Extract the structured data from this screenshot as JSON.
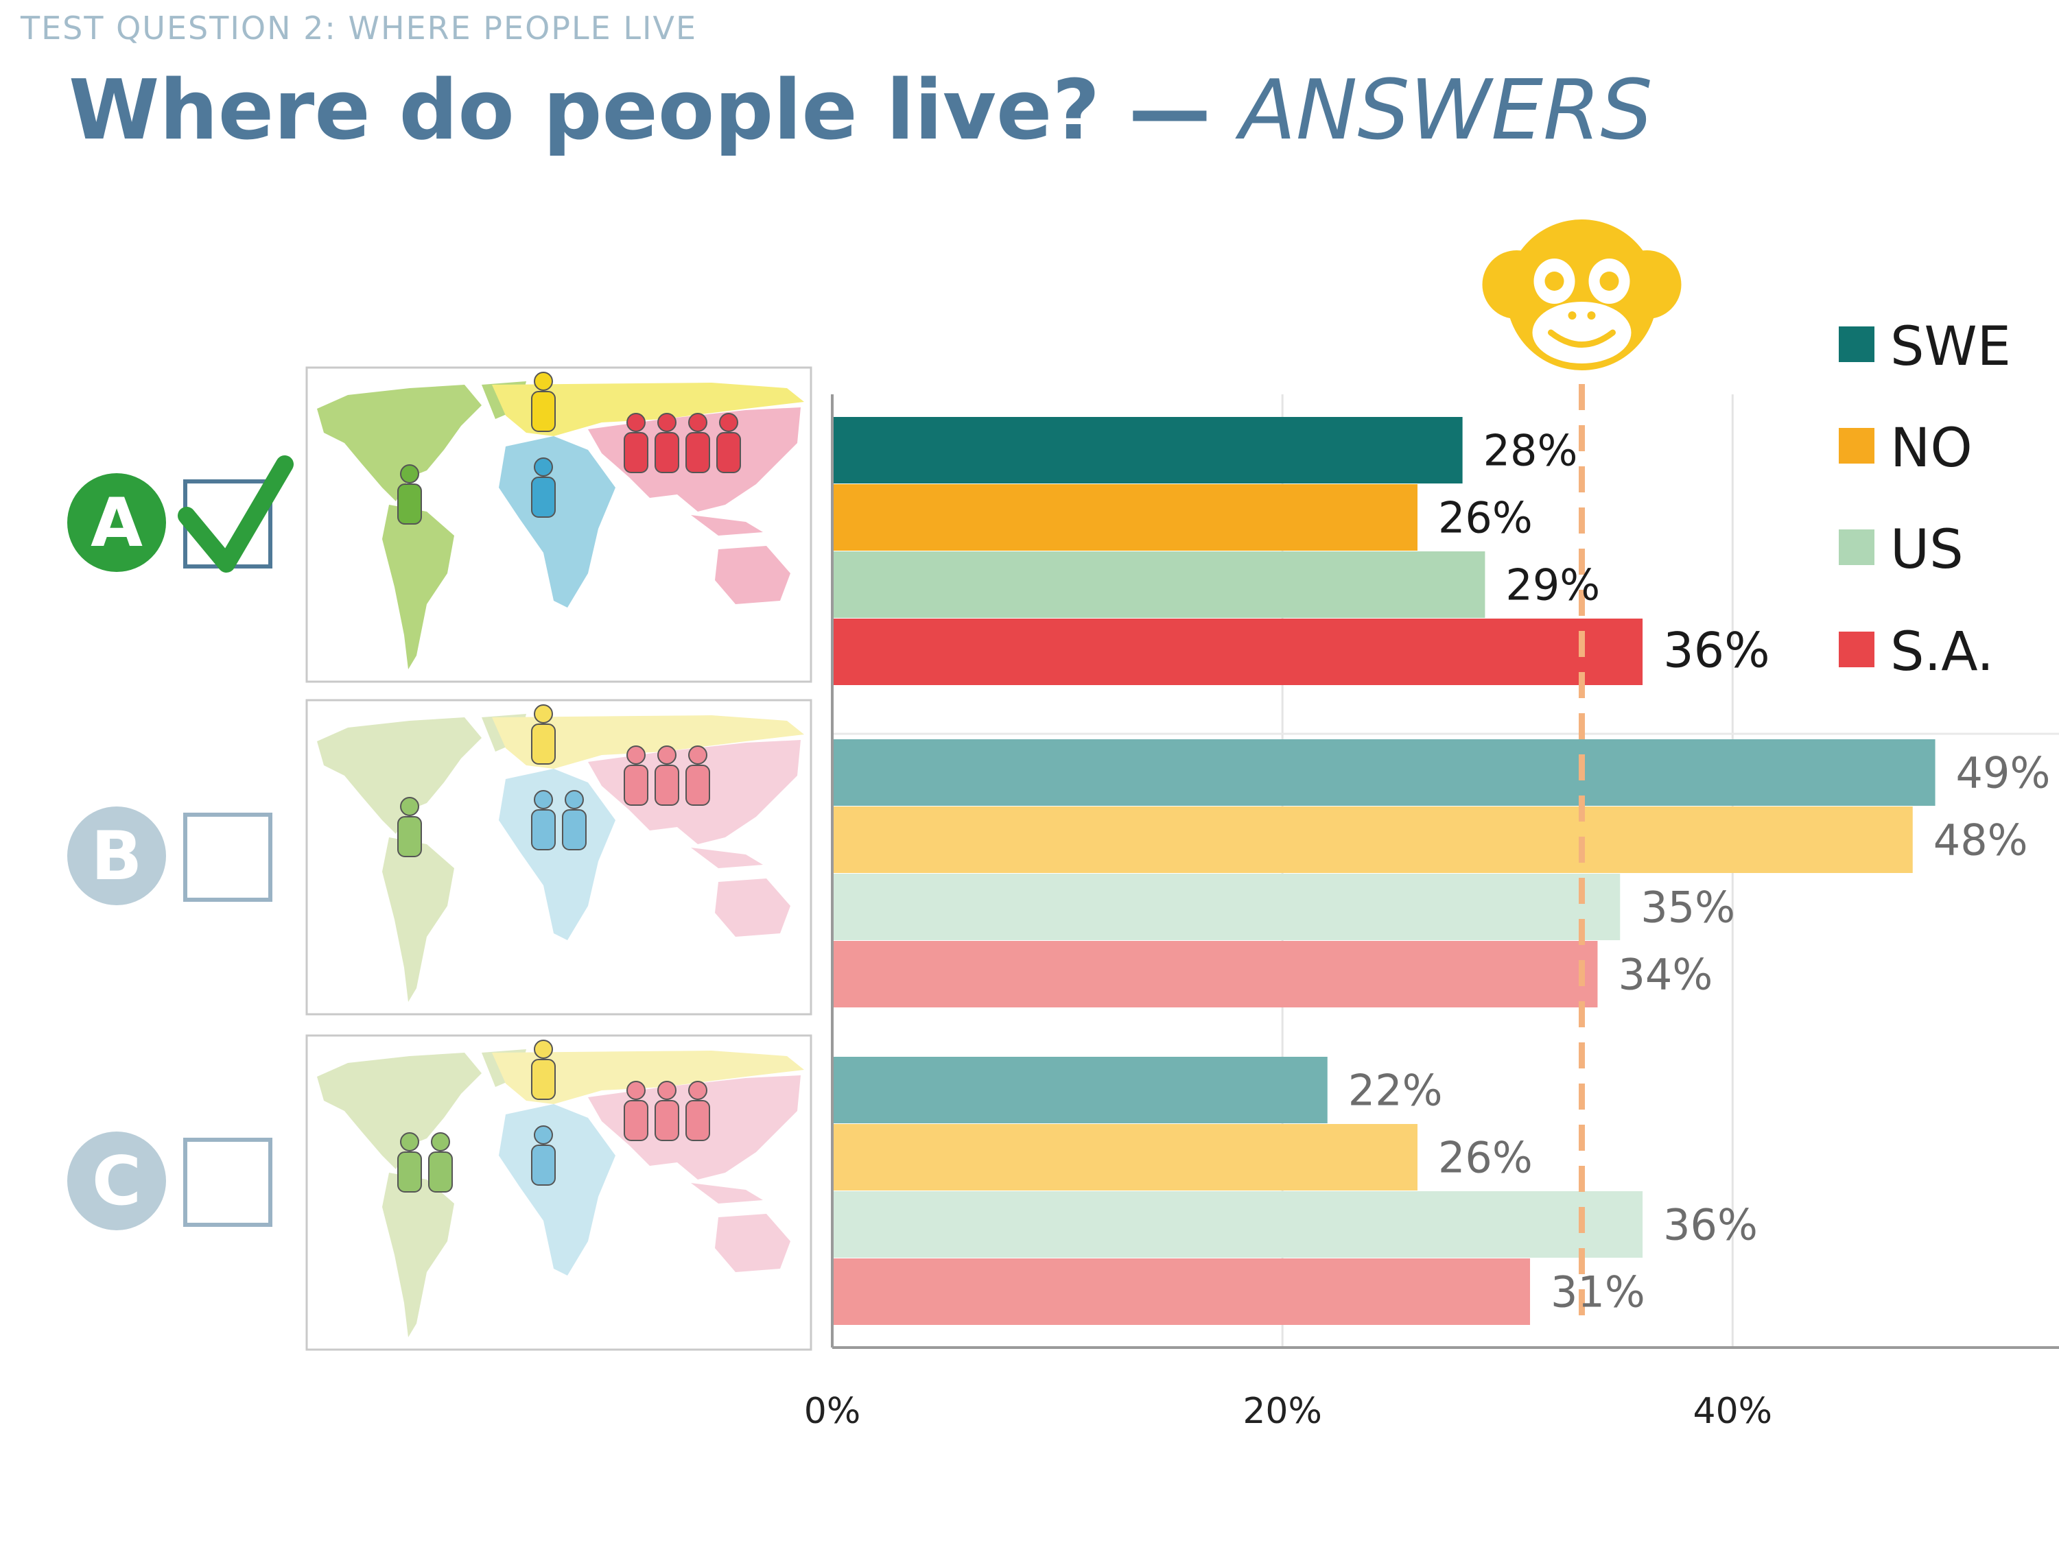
{
  "header": {
    "kicker": "TEST QUESTION 2: WHERE PEOPLE LIVE",
    "title_main": "Where do people live? — ",
    "title_emphasis": "ANSWERS"
  },
  "options": [
    {
      "letter": "A",
      "correct": true,
      "badge_color": "#2e9e3c",
      "checkbox_icon": "check-icon"
    },
    {
      "letter": "B",
      "correct": false,
      "badge_color": "#b9cdd8"
    },
    {
      "letter": "C",
      "correct": false,
      "badge_color": "#b9cdd8"
    }
  ],
  "maps": [
    {
      "option": "A",
      "figures": {
        "americas": 1,
        "europe": 1,
        "africa": 1,
        "asia": 4
      }
    },
    {
      "option": "B",
      "figures": {
        "americas": 1,
        "europe": 1,
        "africa": 2,
        "asia": 3
      }
    },
    {
      "option": "C",
      "figures": {
        "americas": 2,
        "europe": 1,
        "africa": 1,
        "asia": 3
      }
    }
  ],
  "chart_data": {
    "type": "bar",
    "orientation": "horizontal",
    "categories": [
      "A",
      "B",
      "C"
    ],
    "series": [
      {
        "name": "SWE",
        "color": "#11736f",
        "faded_color": "#73b2b1",
        "values": [
          28,
          49,
          22
        ]
      },
      {
        "name": "NO",
        "color": "#f6aa1f",
        "faded_color": "#fbd273",
        "values": [
          26,
          48,
          26
        ]
      },
      {
        "name": "US",
        "color": "#afd7b5",
        "faded_color": "#d3eadb",
        "values": [
          29,
          35,
          36
        ]
      },
      {
        "name": "S.A.",
        "color": "#e8464a",
        "faded_color": "#f29898",
        "values": [
          36,
          34,
          31
        ]
      }
    ],
    "value_labels": [
      [
        "28%",
        "49%",
        "22%"
      ],
      [
        "26%",
        "48%",
        "26%"
      ],
      [
        "29%",
        "35%",
        "36%"
      ],
      [
        "36%",
        "34%",
        "31%"
      ]
    ],
    "highlight_category": "A",
    "xticks": [
      0,
      20,
      40
    ],
    "xtick_labels": [
      "0%",
      "20%",
      "40%"
    ],
    "xlim": [
      0,
      54.5
    ],
    "grid": true,
    "chimp_line_value": 33.3,
    "chimp_icon": "chimp-face-icon",
    "legend_position": "top-right",
    "title": "",
    "xlabel": "",
    "ylabel": ""
  }
}
